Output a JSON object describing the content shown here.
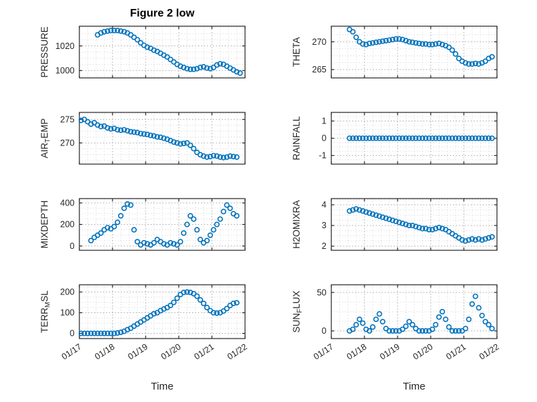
{
  "figure": {
    "title": "Figure 2 low",
    "xlabel": "Time",
    "accent_color": "#0072BD",
    "axis_color": "#262626",
    "grid_color": "#a8a8a8",
    "minor_grid_color": "#d6d6d6",
    "marker": "circle-open",
    "xlim": [
      17,
      22
    ],
    "xticks": [
      17,
      18,
      19,
      20,
      21,
      22
    ],
    "xtick_labels": [
      "01/17",
      "01/18",
      "01/19",
      "01/20",
      "01/21",
      "01/22"
    ]
  },
  "chart_data": [
    {
      "type": "scatter",
      "name": "pressure",
      "row": 0,
      "col": 0,
      "ylabel": {
        "pre": "PRESSURE",
        "sub": "",
        "post": ""
      },
      "yticks": [
        1000,
        1020
      ],
      "ylim": [
        994,
        1036
      ],
      "x0": 17.55,
      "dx": 0.1,
      "values": [
        1029,
        1030.5,
        1031.5,
        1032,
        1032.5,
        1032.5,
        1032.5,
        1032,
        1031.5,
        1030.5,
        1029,
        1027,
        1025,
        1022.5,
        1020.5,
        1019,
        1018,
        1016.5,
        1015.5,
        1014,
        1012.5,
        1011,
        1009,
        1007,
        1005,
        1003.5,
        1002.5,
        1001.5,
        1001,
        1001,
        1001.5,
        1002.5,
        1003,
        1002,
        1001.5,
        1002.5,
        1004.5,
        1005.5,
        1005,
        1003.5,
        1002,
        1000.5,
        999,
        998
      ]
    },
    {
      "type": "scatter",
      "name": "theta",
      "row": 0,
      "col": 1,
      "ylabel": {
        "pre": "THETA",
        "sub": "",
        "post": ""
      },
      "yticks": [
        265,
        270
      ],
      "ylim": [
        263.5,
        272.8
      ],
      "x0": 17.55,
      "dx": 0.1,
      "values": [
        272.2,
        271.8,
        270.8,
        270.0,
        269.6,
        269.5,
        269.7,
        269.8,
        269.9,
        270.0,
        270.1,
        270.2,
        270.3,
        270.4,
        270.5,
        270.5,
        270.4,
        270.2,
        270.0,
        269.9,
        269.8,
        269.7,
        269.6,
        269.6,
        269.5,
        269.5,
        269.6,
        269.7,
        269.5,
        269.3,
        269.0,
        268.5,
        267.8,
        267.0,
        266.5,
        266.2,
        266.0,
        266.0,
        266.1,
        266.0,
        266.2,
        266.5,
        267.0,
        267.3
      ]
    },
    {
      "type": "scatter",
      "name": "airtemp",
      "row": 1,
      "col": 0,
      "ylabel": {
        "pre": "AIR",
        "sub": "T",
        "post": "EMP"
      },
      "yticks": [
        270,
        275
      ],
      "ylim": [
        265.5,
        276.5
      ],
      "x0": 17.05,
      "dx": 0.1,
      "values": [
        274.8,
        275.0,
        274.5,
        274.0,
        274.3,
        273.8,
        273.5,
        273.6,
        273.2,
        273.0,
        273.1,
        272.8,
        272.7,
        272.8,
        272.6,
        272.4,
        272.3,
        272.2,
        272.0,
        271.9,
        271.8,
        271.6,
        271.5,
        271.3,
        271.2,
        271.0,
        270.8,
        270.5,
        270.2,
        270.0,
        269.8,
        269.9,
        270.0,
        269.5,
        268.8,
        268.0,
        267.5,
        267.2,
        267.0,
        267.1,
        267.3,
        267.2,
        267.0,
        266.9,
        267.0,
        267.2,
        267.1,
        267.0
      ]
    },
    {
      "type": "scatter",
      "name": "rainfall",
      "row": 1,
      "col": 1,
      "ylabel": {
        "pre": "RAINFALL",
        "sub": "",
        "post": ""
      },
      "yticks": [
        -1,
        0,
        1
      ],
      "ylim": [
        -1.5,
        1.5
      ],
      "x0": 17.55,
      "dx": 0.1,
      "values": [
        0,
        0,
        0,
        0,
        0,
        0,
        0,
        0,
        0,
        0,
        0,
        0,
        0,
        0,
        0,
        0,
        0,
        0,
        0,
        0,
        0,
        0,
        0,
        0,
        0,
        0,
        0,
        0,
        0,
        0,
        0,
        0,
        0,
        0,
        0,
        0,
        0,
        0,
        0,
        0,
        0,
        0,
        0,
        0
      ]
    },
    {
      "type": "scatter",
      "name": "mixdepth",
      "row": 2,
      "col": 0,
      "ylabel": {
        "pre": "MIXDEPTH",
        "sub": "",
        "post": ""
      },
      "yticks": [
        0,
        200,
        400
      ],
      "ylim": [
        -40,
        440
      ],
      "x0": 17.35,
      "dx": 0.1,
      "values": [
        50,
        80,
        100,
        120,
        150,
        170,
        160,
        180,
        220,
        280,
        350,
        390,
        380,
        150,
        40,
        10,
        30,
        20,
        10,
        30,
        60,
        40,
        20,
        10,
        30,
        20,
        10,
        40,
        120,
        200,
        280,
        250,
        150,
        60,
        30,
        50,
        100,
        150,
        200,
        250,
        320,
        380,
        350,
        300,
        280
      ]
    },
    {
      "type": "scatter",
      "name": "h2omixra",
      "row": 2,
      "col": 1,
      "ylabel": {
        "pre": "H2OMIXRA",
        "sub": "",
        "post": ""
      },
      "yticks": [
        2,
        3,
        4
      ],
      "ylim": [
        1.8,
        4.3
      ],
      "x0": 17.55,
      "dx": 0.1,
      "values": [
        3.7,
        3.75,
        3.8,
        3.75,
        3.7,
        3.65,
        3.6,
        3.55,
        3.5,
        3.45,
        3.4,
        3.35,
        3.3,
        3.25,
        3.2,
        3.15,
        3.1,
        3.05,
        3.0,
        3.0,
        2.95,
        2.9,
        2.85,
        2.85,
        2.8,
        2.8,
        2.85,
        2.9,
        2.85,
        2.8,
        2.7,
        2.6,
        2.5,
        2.4,
        2.3,
        2.25,
        2.3,
        2.35,
        2.3,
        2.35,
        2.3,
        2.35,
        2.4,
        2.45
      ]
    },
    {
      "type": "scatter",
      "name": "terrmsl",
      "row": 3,
      "col": 0,
      "ylabel": {
        "pre": "TERR",
        "sub": "M",
        "post": "SL"
      },
      "yticks": [
        0,
        100,
        200
      ],
      "ylim": [
        -25,
        235
      ],
      "x0": 17.05,
      "dx": 0.1,
      "values": [
        0,
        0,
        0,
        0,
        0,
        0,
        0,
        0,
        0,
        0,
        0,
        2,
        5,
        10,
        18,
        25,
        35,
        45,
        55,
        65,
        75,
        85,
        95,
        100,
        110,
        118,
        125,
        135,
        150,
        170,
        188,
        198,
        200,
        198,
        192,
        180,
        162,
        145,
        125,
        110,
        100,
        98,
        100,
        108,
        120,
        135,
        145,
        148
      ]
    },
    {
      "type": "scatter",
      "name": "sunflux",
      "row": 3,
      "col": 1,
      "ylabel": {
        "pre": "SUN",
        "sub": "F",
        "post": "LUX"
      },
      "yticks": [
        0,
        50
      ],
      "ylim": [
        -10,
        60
      ],
      "x0": 17.55,
      "dx": 0.1,
      "values": [
        0,
        2,
        8,
        15,
        10,
        2,
        0,
        5,
        15,
        22,
        12,
        3,
        0,
        0,
        0,
        0,
        2,
        6,
        12,
        8,
        3,
        0,
        0,
        0,
        0,
        2,
        8,
        18,
        25,
        15,
        5,
        0,
        0,
        0,
        0,
        3,
        15,
        35,
        45,
        30,
        20,
        12,
        8,
        3
      ]
    }
  ]
}
